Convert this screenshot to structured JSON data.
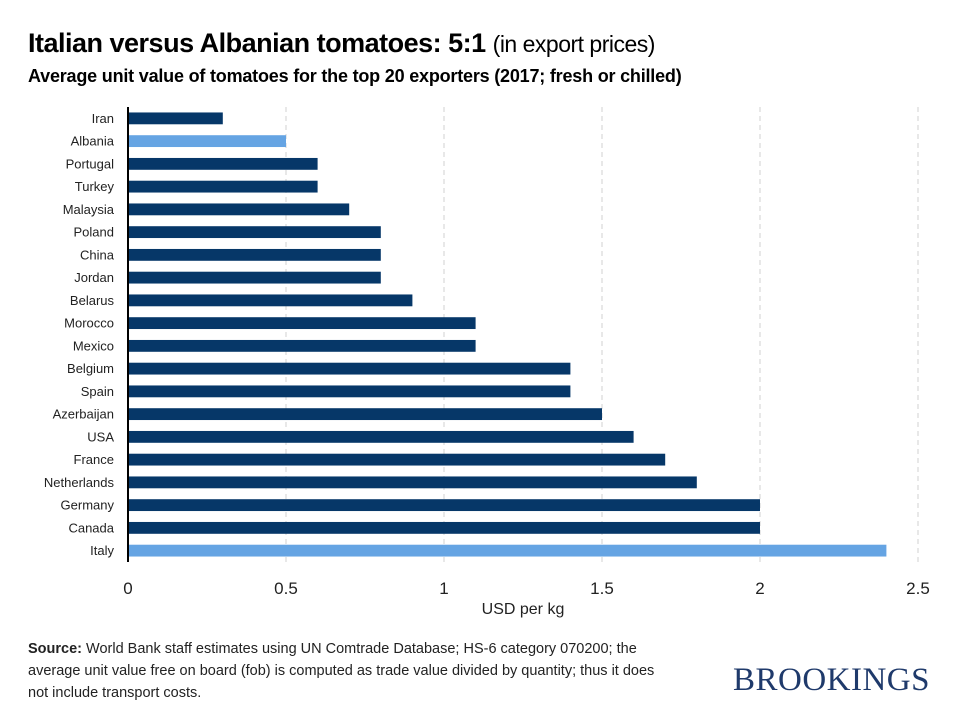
{
  "header": {
    "title_main": "Italian versus Albanian tomatoes: 5:1",
    "title_sub": "(in export prices)",
    "subtitle": "Average unit value of tomatoes for the top 20 exporters (2017; fresh or chilled)"
  },
  "footer": {
    "source_label": "Source:",
    "source_text": "World Bank staff estimates using UN Comtrade Database; HS-6 category 070200; the average unit value free on board (fob) is computed as trade value divided by quantity; thus it does not include transport costs.",
    "brand": "BROOKINGS"
  },
  "colors": {
    "default_bar": "#063768",
    "highlight_bar": "#65a4e3",
    "grid": "#d0d0d0",
    "axis": "#000000"
  },
  "chart_data": {
    "type": "bar",
    "orientation": "horizontal",
    "title": "Italian versus Albanian tomatoes: 5:1 (in export prices)",
    "subtitle": "Average unit value of tomatoes for the top 20 exporters (2017; fresh or chilled)",
    "xlabel": "USD per kg",
    "ylabel": "",
    "xlim": [
      0,
      2.5
    ],
    "xticks": [
      0,
      0.5,
      1,
      1.5,
      2,
      2.5
    ],
    "xtick_labels": [
      "0",
      "0.5",
      "1",
      "1.5",
      "2",
      "2.5"
    ],
    "grid": "vertical dashed",
    "categories": [
      "Iran",
      "Albania",
      "Portugal",
      "Turkey",
      "Malaysia",
      "Poland",
      "China",
      "Jordan",
      "Belarus",
      "Morocco",
      "Mexico",
      "Belgium",
      "Spain",
      "Azerbaijan",
      "USA",
      "France",
      "Netherlands",
      "Germany",
      "Canada",
      "Italy"
    ],
    "values": [
      0.3,
      0.5,
      0.6,
      0.6,
      0.7,
      0.8,
      0.8,
      0.8,
      0.9,
      1.1,
      1.1,
      1.4,
      1.4,
      1.5,
      1.6,
      1.7,
      1.8,
      2.0,
      2.0,
      2.4
    ],
    "highlighted": [
      "Albania",
      "Italy"
    ]
  }
}
